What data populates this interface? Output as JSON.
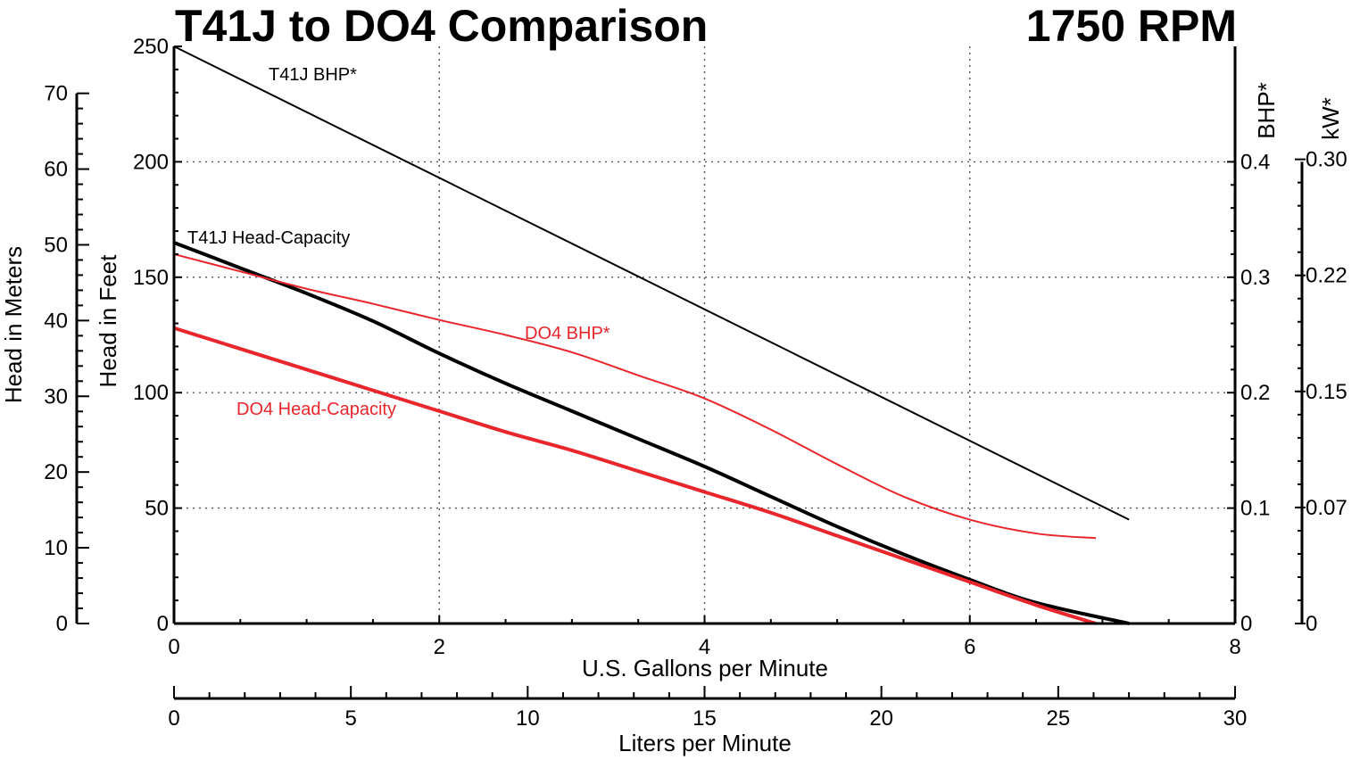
{
  "chart_data": {
    "type": "line",
    "title": "T41J to DO4 Comparison",
    "subtitle": "1750 RPM",
    "colors": {
      "t41j": "#000000",
      "do4": "#e8262b"
    },
    "x_axis": {
      "label": "U.S. Gallons per Minute",
      "range": [
        0,
        8
      ],
      "ticks": [
        0,
        2,
        4,
        6,
        8
      ],
      "tick_labels": [
        "0",
        "2",
        "4",
        "6",
        "8"
      ]
    },
    "x2_axis": {
      "label": "Liters per Minute",
      "range": [
        0,
        30
      ],
      "ticks": [
        0,
        5,
        10,
        15,
        20,
        25,
        30
      ],
      "tick_labels": [
        "0",
        "5",
        "10",
        "15",
        "20",
        "25",
        "30"
      ]
    },
    "y_axis": {
      "label": "Head in Feet",
      "range": [
        0,
        250
      ],
      "ticks": [
        0,
        50,
        100,
        150,
        200,
        250
      ],
      "tick_labels": [
        "0",
        "50",
        "100",
        "150",
        "200",
        "250"
      ]
    },
    "y_meters_axis": {
      "label": "Head in Meters",
      "range": [
        0,
        76.2
      ],
      "ticks": [
        0,
        10,
        20,
        30,
        40,
        50,
        60,
        70
      ],
      "tick_labels": [
        "0",
        "10",
        "20",
        "30",
        "40",
        "50",
        "60",
        "70"
      ]
    },
    "y_bhp_axis": {
      "label": "BHP*",
      "range": [
        0,
        0.5
      ],
      "ticks": [
        0,
        0.1,
        0.2,
        0.3,
        0.4
      ],
      "tick_labels": [
        "0",
        "0.1",
        "0.2",
        "0.3",
        "0.4"
      ]
    },
    "y_kw_axis": {
      "label": "kW*",
      "range": [
        0,
        0.373
      ],
      "ticks": [
        0,
        0.075,
        0.15,
        0.225,
        0.3
      ],
      "tick_labels": [
        "0",
        "0.07",
        "0.15",
        "0.22",
        "0.30"
      ]
    },
    "grid": true,
    "series": [
      {
        "name": "T41J Head-Capacity",
        "color_key": "t41j",
        "axis": "feet",
        "weight": "heavy",
        "x": [
          0,
          0.5,
          1,
          1.5,
          2,
          2.5,
          3,
          3.5,
          4,
          4.5,
          5,
          5.5,
          6,
          6.5,
          7.2
        ],
        "y": [
          165,
          154,
          143,
          131,
          117,
          104,
          92,
          80,
          68,
          55,
          42,
          30,
          19,
          9,
          0
        ]
      },
      {
        "name": "T41J BHP*",
        "color_key": "t41j",
        "axis": "bhp",
        "weight": "light",
        "x": [
          0,
          7.2
        ],
        "y": [
          0.5,
          0.09
        ]
      },
      {
        "name": "DO4 Head-Capacity",
        "color_key": "do4",
        "axis": "feet",
        "weight": "heavy",
        "x": [
          0,
          0.5,
          1,
          1.5,
          2,
          2.5,
          3,
          3.5,
          4,
          4.5,
          5,
          5.5,
          6,
          6.5,
          6.95
        ],
        "y": [
          128,
          119,
          110,
          101,
          92,
          83,
          75,
          66,
          57,
          48,
          38,
          28,
          18,
          8,
          0
        ]
      },
      {
        "name": "DO4 BHP*",
        "color_key": "do4",
        "axis": "bhp",
        "weight": "light",
        "x": [
          0,
          0.5,
          1,
          1.5,
          2,
          2.5,
          3,
          3.5,
          4,
          4.5,
          5,
          5.5,
          6,
          6.5,
          6.95
        ],
        "y": [
          0.32,
          0.305,
          0.29,
          0.277,
          0.263,
          0.25,
          0.235,
          0.215,
          0.195,
          0.168,
          0.138,
          0.11,
          0.09,
          0.078,
          0.074
        ]
      }
    ]
  }
}
